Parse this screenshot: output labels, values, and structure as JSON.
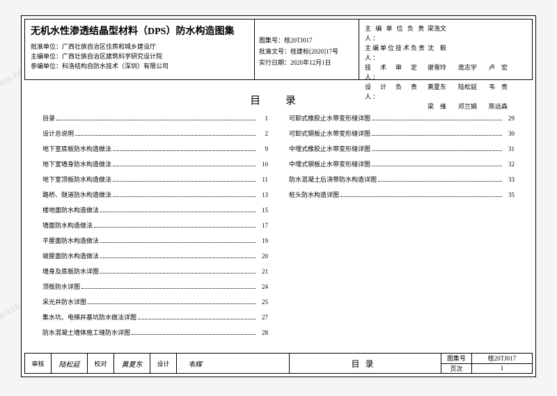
{
  "watermark": "www.keluochina.com.cn",
  "header": {
    "title": "无机水性渗透结晶型材料（DPS）防水构造图集",
    "approval_unit_label": "批准单位：",
    "approval_unit": "广西壮族自治区住房和城乡建设厅",
    "main_editor_label": "主编单位：",
    "main_editor": "广西壮族自治区建筑科学研究设计院",
    "participant_label": "参编单位：",
    "participant": "科洛结构自防水技术（深圳）有限公司",
    "album_no_label": "图集号：",
    "album_no": "桂20TJ017",
    "approval_doc_label": "批准文号：",
    "approval_doc": "桂建标[2020]17号",
    "effective_date_label": "实行日期：",
    "effective_date": "2020年12月1日",
    "roles": [
      {
        "label": "主 编 单 位 负 责 人：",
        "names": [
          "梁浩文"
        ]
      },
      {
        "label": "主编单位技术负责人：",
        "names": [
          "沈　毅"
        ]
      },
      {
        "label": "技　术　审　定　人：",
        "names": [
          "谢雪玲",
          "庞志宇",
          "卢　宏"
        ]
      },
      {
        "label": "设　计　负　责　人：",
        "names": [
          "黄夏东",
          "陆松延",
          "韦　亮"
        ]
      },
      {
        "label": "",
        "names": [
          "梁　维",
          "邓兰娟",
          "陈远森"
        ]
      }
    ]
  },
  "toc": {
    "heading": "目 录",
    "left": [
      {
        "label": "目录",
        "page": "1"
      },
      {
        "label": "设计总说明",
        "page": "2"
      },
      {
        "label": "地下室底板防水构造做法",
        "page": "9"
      },
      {
        "label": "地下室墙身防水构造做法",
        "page": "10"
      },
      {
        "label": "地下室顶板防水构造做法",
        "page": "11"
      },
      {
        "label": "路桥、隧道防水构造做法",
        "page": "13"
      },
      {
        "label": "楼地面防水构造做法",
        "page": "15"
      },
      {
        "label": "墙面防水构造做法",
        "page": "17"
      },
      {
        "label": "平屋面防水构造做法",
        "page": "19"
      },
      {
        "label": "坡屋面防水构造做法",
        "page": "20"
      },
      {
        "label": "墙身及底板防水详图",
        "page": "21"
      },
      {
        "label": "顶板防水详图",
        "page": "24"
      },
      {
        "label": "采光井防水详图",
        "page": "25"
      },
      {
        "label": "集水坑、电梯井基坑防水做法详图",
        "page": "27"
      },
      {
        "label": "防水混凝土墙体施工缝防水详图",
        "page": "28"
      }
    ],
    "right": [
      {
        "label": "可卸式橡胶止水带变形缝详图",
        "page": "29"
      },
      {
        "label": "可卸式钢板止水带变形缝详图",
        "page": "30"
      },
      {
        "label": "中埋式橡胶止水带变形缝详图",
        "page": "31"
      },
      {
        "label": "中埋式钢板止水带变形缝详图",
        "page": "32"
      },
      {
        "label": "防水混凝土后浇带防水构造详图",
        "page": "33"
      },
      {
        "label": "桩头防水构造详图",
        "page": "35"
      }
    ]
  },
  "footer": {
    "check_label": "审核",
    "check_sig": "陆松延",
    "proof_label": "校对",
    "proof_sig": "黄夏东",
    "design_label": "设计",
    "design_sig": "韦辉",
    "center": "目录",
    "album_label": "图集号",
    "album_val": "桂20TJ017",
    "page_label": "页次",
    "page_val": "1"
  }
}
